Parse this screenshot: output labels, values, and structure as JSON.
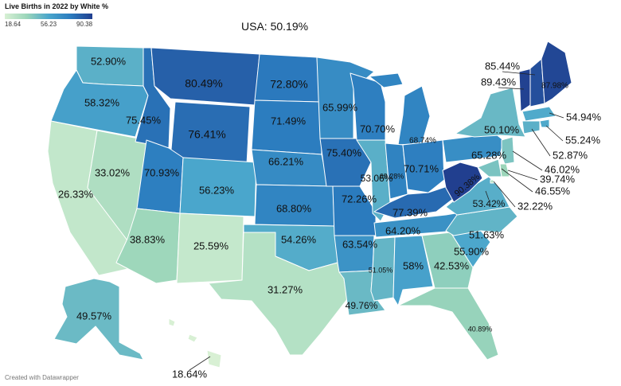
{
  "legend": {
    "title": "Live Births in 2022 by White %",
    "min": "18.64",
    "mid": "56.23",
    "max": "90.38"
  },
  "subtitle": "USA: 50.19%",
  "credit": "Created with Datawrapper",
  "colors": {
    "min": "#d8f0d4",
    "low": "#9bd6ba",
    "mid": "#4aa6cc",
    "high": "#2b7cbf",
    "max": "#213f8f"
  },
  "states": [
    {
      "id": "WA",
      "value": 52.9,
      "label": "52.90%"
    },
    {
      "id": "OR",
      "value": 58.32,
      "label": "58.32%"
    },
    {
      "id": "CA",
      "value": 26.33,
      "label": "26.33%"
    },
    {
      "id": "NV",
      "value": 33.02,
      "label": "33.02%"
    },
    {
      "id": "ID",
      "value": 75.45,
      "label": "75.45%"
    },
    {
      "id": "MT",
      "value": 80.49,
      "label": "80.49%"
    },
    {
      "id": "WY",
      "value": 76.41,
      "label": "76.41%"
    },
    {
      "id": "UT",
      "value": 70.93,
      "label": "70.93%"
    },
    {
      "id": "AZ",
      "value": 38.83,
      "label": "38.83%"
    },
    {
      "id": "CO",
      "value": 56.23,
      "label": "56.23%"
    },
    {
      "id": "NM",
      "value": 25.59,
      "label": "25.59%"
    },
    {
      "id": "ND",
      "value": 72.8,
      "label": "72.80%"
    },
    {
      "id": "SD",
      "value": 71.49,
      "label": "71.49%"
    },
    {
      "id": "NE",
      "value": 66.21,
      "label": "66.21%"
    },
    {
      "id": "KS",
      "value": 68.8,
      "label": "68.80%"
    },
    {
      "id": "OK",
      "value": 54.26,
      "label": "54.26%"
    },
    {
      "id": "TX",
      "value": 31.27,
      "label": "31.27%"
    },
    {
      "id": "MN",
      "value": 65.99,
      "label": "65.99%"
    },
    {
      "id": "IA",
      "value": 75.4,
      "label": "75.40%"
    },
    {
      "id": "MO",
      "value": 72.26,
      "label": "72.26%"
    },
    {
      "id": "AR",
      "value": 63.54,
      "label": "63.54%"
    },
    {
      "id": "LA",
      "value": 49.76,
      "label": "49.76%"
    },
    {
      "id": "WI",
      "value": 70.7,
      "label": "70.70%"
    },
    {
      "id": "IL",
      "value": 53.06,
      "label": "53.06%"
    },
    {
      "id": "MI",
      "value": 68.74,
      "label": "68.74%"
    },
    {
      "id": "IN",
      "value": 69.28,
      "label": "69.28%"
    },
    {
      "id": "OH",
      "value": 70.71,
      "label": "70.71%"
    },
    {
      "id": "KY",
      "value": 77.39,
      "label": "77.39%"
    },
    {
      "id": "TN",
      "value": 64.2,
      "label": "64.20%"
    },
    {
      "id": "MS",
      "value": 51.05,
      "label": "51.05%"
    },
    {
      "id": "AL",
      "value": 58.0,
      "label": "58%"
    },
    {
      "id": "GA",
      "value": 42.53,
      "label": "42.53%"
    },
    {
      "id": "FL",
      "value": 40.89,
      "label": "40.89%"
    },
    {
      "id": "SC",
      "value": 55.9,
      "label": "55.90%"
    },
    {
      "id": "NC",
      "value": 51.63,
      "label": "51.63%"
    },
    {
      "id": "VA",
      "value": 53.42,
      "label": "53.42%"
    },
    {
      "id": "WV",
      "value": 90.38,
      "label": "90.38%"
    },
    {
      "id": "PA",
      "value": 65.28,
      "label": "65.28%"
    },
    {
      "id": "NY",
      "value": 50.1,
      "label": "50.10%"
    },
    {
      "id": "VT",
      "value": 89.43,
      "label": "89.43%"
    },
    {
      "id": "NH",
      "value": 85.44,
      "label": "85.44%"
    },
    {
      "id": "ME",
      "value": 87.98,
      "label": "87.98%"
    },
    {
      "id": "MA",
      "value": 54.94,
      "label": "54.94%"
    },
    {
      "id": "RI",
      "value": 55.24,
      "label": "55.24%"
    },
    {
      "id": "CT",
      "value": 52.87,
      "label": "52.87%"
    },
    {
      "id": "NJ",
      "value": 46.02,
      "label": "46.02%"
    },
    {
      "id": "DE",
      "value": 39.74,
      "label": "39.74%"
    },
    {
      "id": "MD",
      "value": 46.55,
      "label": "46.55%"
    },
    {
      "id": "DC",
      "value": 32.22,
      "label": "32.22%"
    },
    {
      "id": "AK",
      "value": 49.57,
      "label": "49.57%"
    },
    {
      "id": "HI",
      "value": 18.64,
      "label": "18.64%"
    }
  ]
}
